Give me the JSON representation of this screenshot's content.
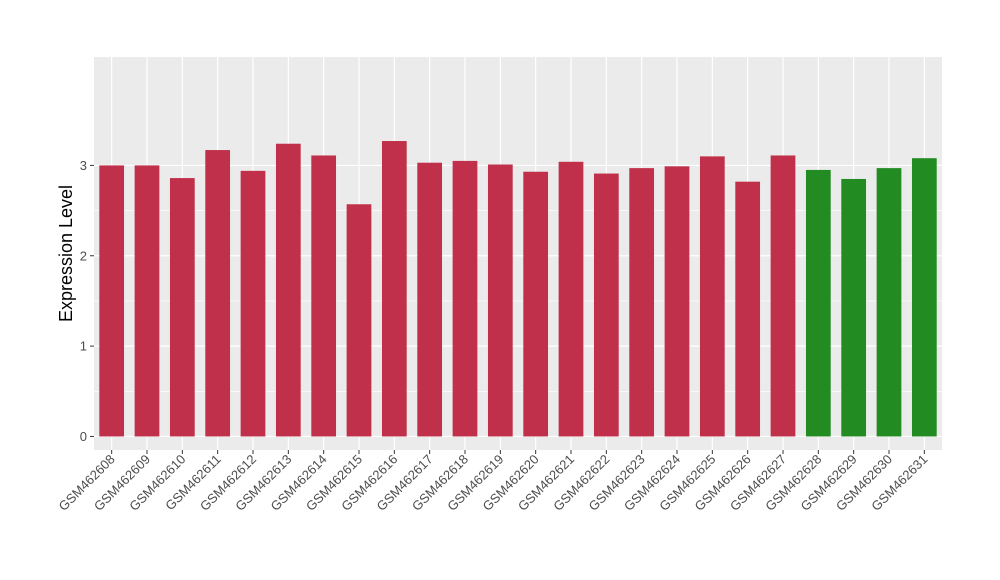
{
  "chart_data": {
    "type": "bar",
    "title": "",
    "xlabel": "",
    "ylabel": "Expression Level",
    "ylim": [
      -0.15,
      4.2
    ],
    "yticks": [
      0,
      1,
      2,
      3
    ],
    "grid": true,
    "legend": "none",
    "categories": [
      "GSM462608",
      "GSM462609",
      "GSM462610",
      "GSM462611",
      "GSM462612",
      "GSM462613",
      "GSM462614",
      "GSM462615",
      "GSM462616",
      "GSM462617",
      "GSM462618",
      "GSM462619",
      "GSM462620",
      "GSM462621",
      "GSM462622",
      "GSM462623",
      "GSM462624",
      "GSM462625",
      "GSM462626",
      "GSM462627",
      "GSM462628",
      "GSM462629",
      "GSM462630",
      "GSM462631"
    ],
    "values": [
      3.0,
      3.0,
      2.86,
      3.17,
      2.94,
      3.24,
      3.11,
      2.57,
      3.27,
      3.03,
      3.05,
      3.01,
      2.93,
      3.04,
      2.91,
      2.97,
      2.99,
      3.1,
      2.82,
      3.11,
      2.95,
      2.85,
      2.97,
      3.08
    ],
    "colors": [
      "#c0304a",
      "#c0304a",
      "#c0304a",
      "#c0304a",
      "#c0304a",
      "#c0304a",
      "#c0304a",
      "#c0304a",
      "#c0304a",
      "#c0304a",
      "#c0304a",
      "#c0304a",
      "#c0304a",
      "#c0304a",
      "#c0304a",
      "#c0304a",
      "#c0304a",
      "#c0304a",
      "#c0304a",
      "#c0304a",
      "#228b22",
      "#228b22",
      "#228b22",
      "#228b22"
    ],
    "panel_background": "#ebebeb",
    "grid_color": "#ffffff"
  }
}
